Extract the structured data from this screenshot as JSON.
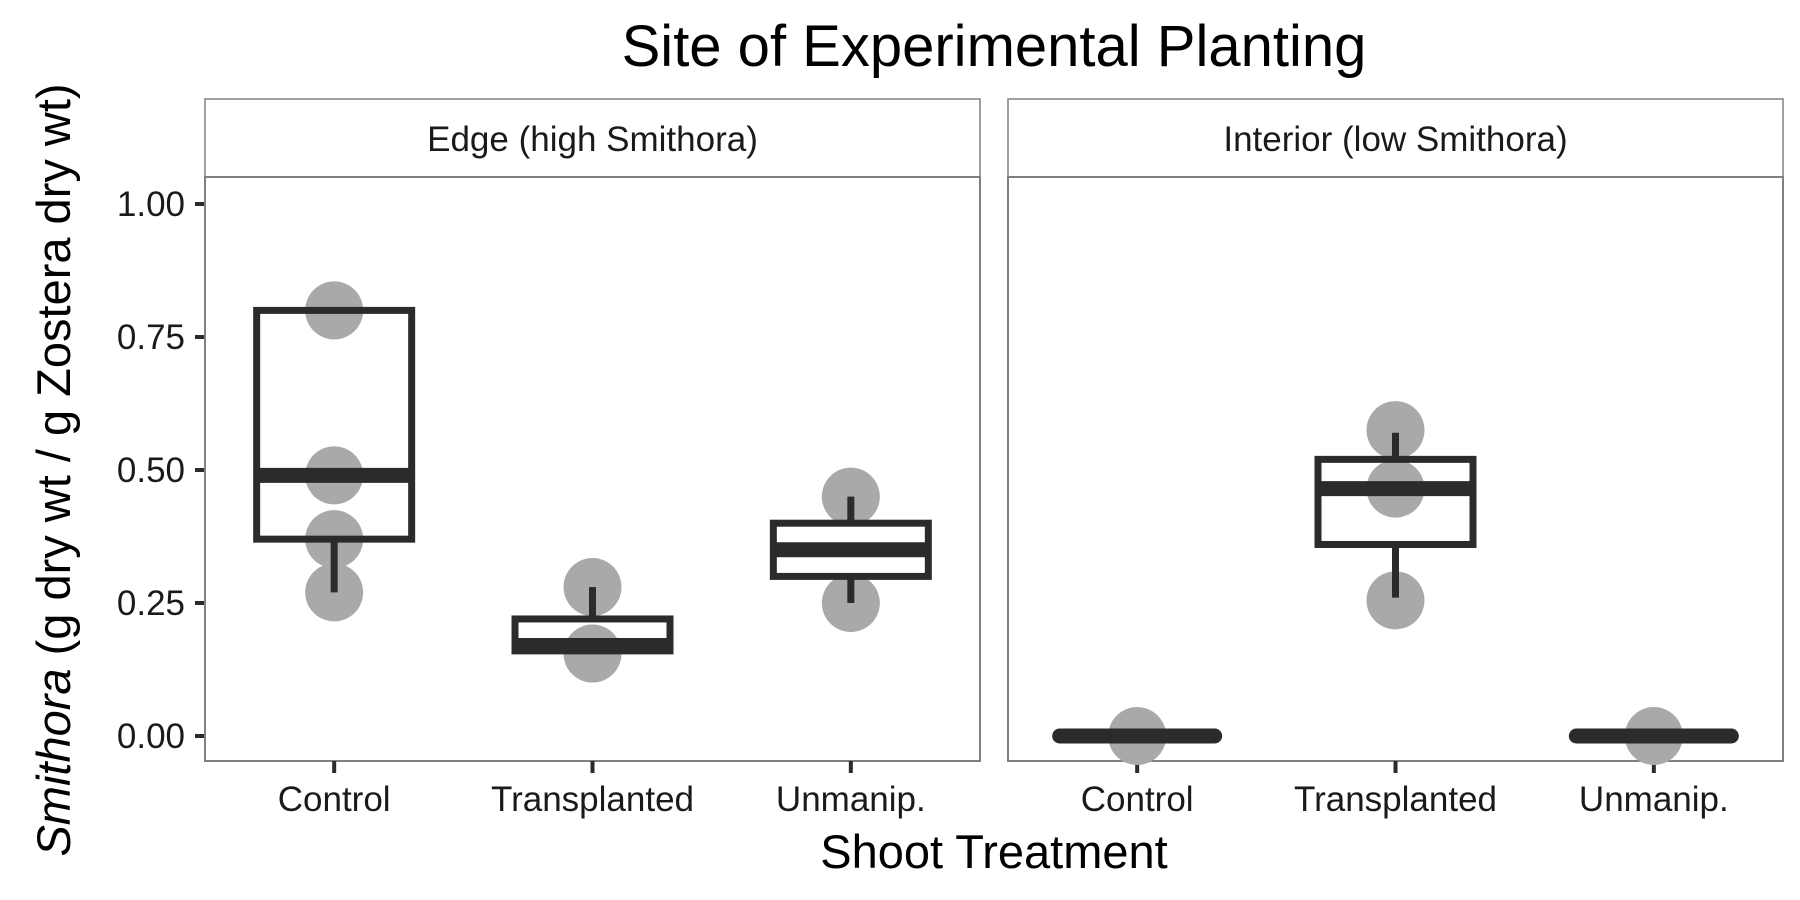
{
  "chart_data": {
    "type": "boxplot",
    "title": "Site of Experimental Planting",
    "xlabel": "Shoot Treatment",
    "ylabel_italic": "Smithora",
    "ylabel_rest": " (g dry wt / g Zostera dry wt)",
    "ylim": [
      -0.05,
      1.05
    ],
    "yticks": [
      "0.00",
      "0.25",
      "0.50",
      "0.75",
      "1.00"
    ],
    "categories": [
      "Control",
      "Transplanted",
      "Unmanip."
    ],
    "grid": false,
    "colors": {
      "box": "#2b2b2b",
      "points": "#a9a9a9",
      "panel_border": "#808080"
    },
    "panels": [
      {
        "label": "Edge (high Smithora)",
        "groups": [
          {
            "category": "Control",
            "q1": 0.37,
            "median": 0.49,
            "q3": 0.8,
            "whisker_low": 0.27,
            "whisker_high": 0.8,
            "points": [
              0.27,
              0.37,
              0.49,
              0.8
            ]
          },
          {
            "category": "Transplanted",
            "q1": 0.16,
            "median": 0.17,
            "q3": 0.22,
            "whisker_low": 0.16,
            "whisker_high": 0.28,
            "points": [
              0.155,
              0.28
            ]
          },
          {
            "category": "Unmanip.",
            "q1": 0.3,
            "median": 0.35,
            "q3": 0.4,
            "whisker_low": 0.25,
            "whisker_high": 0.45,
            "points": [
              0.25,
              0.45
            ]
          }
        ]
      },
      {
        "label": "Interior (low Smithora)",
        "groups": [
          {
            "category": "Control",
            "q1": 0.0,
            "median": 0.0,
            "q3": 0.0,
            "whisker_low": 0.0,
            "whisker_high": 0.0,
            "points": [
              0.0
            ]
          },
          {
            "category": "Transplanted",
            "q1": 0.36,
            "median": 0.465,
            "q3": 0.52,
            "whisker_low": 0.26,
            "whisker_high": 0.57,
            "points": [
              0.255,
              0.465,
              0.575
            ]
          },
          {
            "category": "Unmanip.",
            "q1": 0.0,
            "median": 0.0,
            "q3": 0.0,
            "whisker_low": 0.0,
            "whisker_high": 0.0,
            "points": [
              0.0
            ]
          }
        ]
      }
    ]
  }
}
